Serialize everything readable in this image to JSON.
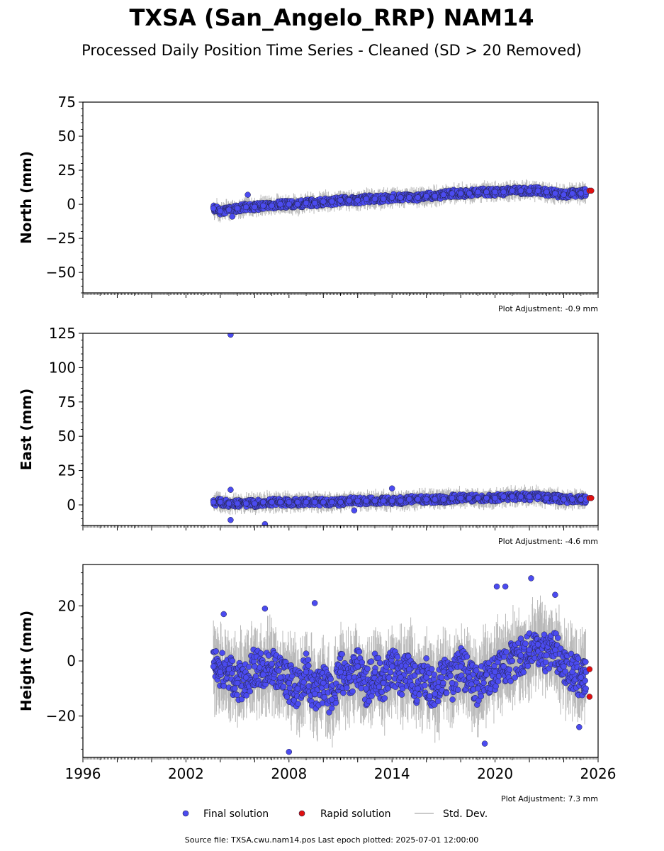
{
  "title": "TXSA (San_Angelo_RRP) NAM14",
  "subtitle": "Processed Daily Position Time Series - Cleaned (SD > 20 Removed)",
  "footer": "Source file: TXSA.cwu.nam14.pos  Last epoch plotted: 2025-07-01 12:00:00",
  "legend": {
    "final": "Final solution",
    "rapid": "Rapid solution",
    "sd": "Std. Dev."
  },
  "colors": {
    "final": "#4b4bf0",
    "rapid": "#e01010",
    "sd": "#b8b8b8",
    "marker_edge": "#222244"
  },
  "chart_data": [
    {
      "type": "scatter",
      "ylabel": "North (mm)",
      "xlim": [
        1996,
        2026
      ],
      "ylim": [
        -65,
        75
      ],
      "yticks": [
        -50,
        -25,
        0,
        25,
        50,
        75
      ],
      "ytick_labels": [
        "−50",
        "−25",
        "0",
        "25",
        "50",
        "75"
      ],
      "adjustment": "Plot Adjustment: -0.9 mm",
      "series": [
        {
          "x": [
            2003.6,
            2004.0,
            2004.5,
            2005.0,
            2005.5,
            2006.0,
            2006.5,
            2007.0,
            2007.5,
            2008.0,
            2008.5,
            2009.0,
            2009.5,
            2010.0,
            2010.5,
            2011.0,
            2011.5,
            2012.0,
            2012.5,
            2013.0,
            2013.5,
            2014.0,
            2014.5,
            2015.0,
            2015.5,
            2016.0,
            2016.5,
            2017.0,
            2017.5,
            2018.0,
            2018.5,
            2019.0,
            2019.5,
            2020.0,
            2020.5,
            2021.0,
            2021.5,
            2022.0,
            2022.5,
            2023.0,
            2023.5,
            2024.0,
            2024.5,
            2025.0,
            2025.3
          ],
          "y": [
            -3,
            -5,
            -4,
            -3,
            -2,
            -2,
            -1,
            -1,
            0,
            0,
            0,
            1,
            1,
            2,
            2,
            3,
            3,
            3,
            4,
            4,
            4,
            5,
            5,
            5,
            5,
            6,
            6,
            7,
            8,
            8,
            8,
            9,
            9,
            9,
            9,
            10,
            10,
            10,
            10,
            9,
            8,
            7,
            8,
            8,
            9
          ]
        },
        {
          "x": [
            2004.7,
            2005.6
          ],
          "y": [
            -9,
            7
          ]
        },
        {
          "x": [
            2025.5,
            2025.6
          ],
          "y": [
            10,
            10
          ]
        }
      ]
    },
    {
      "type": "scatter",
      "ylabel": "East (mm)",
      "xlim": [
        1996,
        2026
      ],
      "ylim": [
        -15,
        125
      ],
      "yticks": [
        0,
        25,
        50,
        75,
        100,
        125
      ],
      "ytick_labels": [
        "0",
        "25",
        "50",
        "75",
        "100",
        "125"
      ],
      "adjustment": "Plot Adjustment: -4.6 mm",
      "series": [
        {
          "x": [
            2003.6,
            2004.0,
            2004.5,
            2005.0,
            2005.5,
            2006.0,
            2006.5,
            2007.0,
            2007.5,
            2008.0,
            2008.5,
            2009.0,
            2009.5,
            2010.0,
            2010.5,
            2011.0,
            2011.5,
            2012.0,
            2012.5,
            2013.0,
            2013.5,
            2014.0,
            2014.5,
            2015.0,
            2015.5,
            2016.0,
            2016.5,
            2017.0,
            2017.5,
            2018.0,
            2018.5,
            2019.0,
            2019.5,
            2020.0,
            2020.5,
            2021.0,
            2021.5,
            2022.0,
            2022.5,
            2023.0,
            2023.5,
            2024.0,
            2024.5,
            2025.0,
            2025.3
          ],
          "y": [
            2,
            2,
            1,
            1,
            1,
            1,
            2,
            2,
            2,
            2,
            2,
            2,
            2,
            2,
            2,
            2,
            3,
            3,
            3,
            3,
            3,
            3,
            3,
            4,
            4,
            4,
            4,
            4,
            5,
            5,
            5,
            5,
            5,
            5,
            6,
            6,
            6,
            6,
            6,
            5,
            5,
            4,
            4,
            4,
            4
          ]
        },
        {
          "x": [
            2004.6,
            2004.6,
            2004.6,
            2006.6,
            2011.8,
            2014.0
          ],
          "y": [
            124,
            11,
            -11,
            -14,
            -4,
            12
          ]
        },
        {
          "x": [
            2025.5,
            2025.6
          ],
          "y": [
            5,
            5
          ]
        }
      ]
    },
    {
      "type": "scatter",
      "ylabel": "Height (mm)",
      "xlim": [
        1996,
        2026
      ],
      "ylim": [
        -35,
        35
      ],
      "yticks": [
        -20,
        0,
        20
      ],
      "ytick_labels": [
        "−20",
        "0",
        "20"
      ],
      "xticks": [
        1996,
        2002,
        2008,
        2014,
        2020,
        2026
      ],
      "xtick_labels": [
        "1996",
        "2002",
        "2008",
        "2014",
        "2020",
        "2026"
      ],
      "adjustment": "Plot Adjustment: 7.3 mm",
      "series": [
        {
          "x": [
            2003.6,
            2004.0,
            2004.5,
            2005.0,
            2005.5,
            2006.0,
            2006.5,
            2007.0,
            2007.5,
            2008.0,
            2008.5,
            2009.0,
            2009.5,
            2010.0,
            2010.5,
            2011.0,
            2011.5,
            2012.0,
            2012.5,
            2013.0,
            2013.5,
            2014.0,
            2014.5,
            2015.0,
            2015.5,
            2016.0,
            2016.5,
            2017.0,
            2017.5,
            2018.0,
            2018.5,
            2019.0,
            2019.5,
            2020.0,
            2020.5,
            2021.0,
            2021.5,
            2022.0,
            2022.5,
            2023.0,
            2023.5,
            2024.0,
            2024.5,
            2025.0,
            2025.3
          ],
          "y": [
            -2,
            -4,
            -3,
            -8,
            -6,
            -2,
            -5,
            -1,
            -6,
            -8,
            -10,
            -4,
            -12,
            -8,
            -14,
            -4,
            -6,
            -2,
            -10,
            -4,
            -8,
            -2,
            -6,
            -3,
            -10,
            -6,
            -12,
            -4,
            -8,
            -2,
            -6,
            -10,
            -5,
            -4,
            -2,
            0,
            2,
            4,
            6,
            2,
            4,
            -2,
            -4,
            -6,
            -4
          ]
        },
        {
          "x": [
            2004.2,
            2006.6,
            2009.5,
            2008.0,
            2019.4,
            2020.1,
            2020.6,
            2022.1,
            2023.5,
            2024.9
          ],
          "y": [
            17,
            19,
            21,
            -33,
            -30,
            27,
            27,
            30,
            24,
            -24
          ]
        },
        {
          "x": [
            2025.5,
            2025.5
          ],
          "y": [
            -3,
            -13
          ]
        }
      ]
    }
  ]
}
